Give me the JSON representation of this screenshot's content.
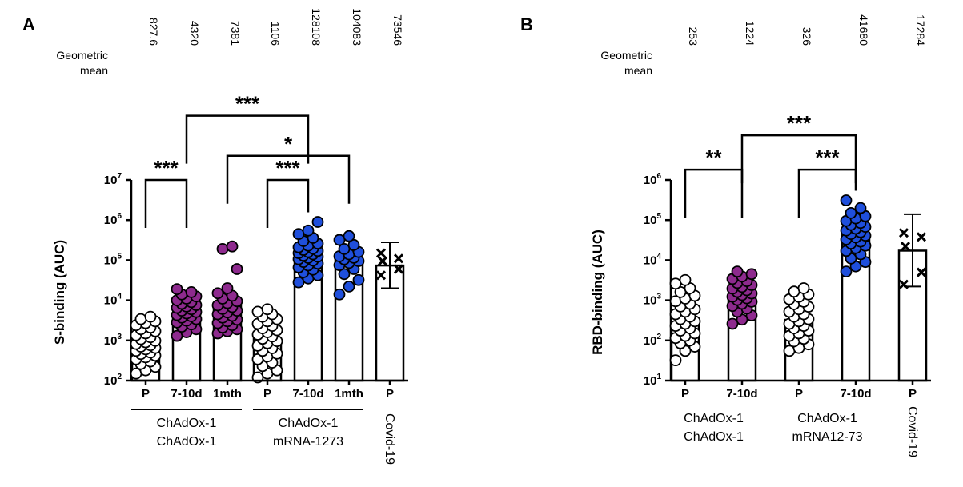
{
  "chart_data": [
    {
      "type": "bar",
      "panel": "A",
      "geo_mean_label": [
        "Geometric",
        "mean"
      ],
      "geo_means": [
        "827.6",
        "4320",
        "7381",
        "1106",
        "128108",
        "104083",
        "73546"
      ],
      "ylabel": "S-binding (AUC)",
      "y_scale": "log",
      "ylim": [
        100,
        10000000
      ],
      "y_ticks": [
        {
          "base": "10",
          "exp": "2"
        },
        {
          "base": "10",
          "exp": "3"
        },
        {
          "base": "10",
          "exp": "4"
        },
        {
          "base": "10",
          "exp": "5"
        },
        {
          "base": "10",
          "exp": "6"
        },
        {
          "base": "10",
          "exp": "7"
        }
      ],
      "categories": [
        "P",
        "7-10d",
        "1mth",
        "P",
        "7-10d",
        "1mth",
        "P"
      ],
      "values": [
        827.6,
        4320,
        7381,
        1106,
        128108,
        104083,
        73546
      ],
      "point_colors": [
        "#ffffff",
        "#8e2a8e",
        "#8e2a8e",
        "#ffffff",
        "#1f4fdc",
        "#1f4fdc",
        "cross"
      ],
      "points": [
        [
          150,
          180,
          220,
          260,
          300,
          340,
          380,
          420,
          460,
          500,
          550,
          600,
          650,
          700,
          760,
          820,
          900,
          980,
          1080,
          1200,
          1350,
          1500,
          1700,
          1900,
          2100,
          2400,
          2700,
          3000,
          3400,
          3900
        ],
        [
          1300,
          1600,
          1900,
          2200,
          2500,
          2800,
          3100,
          3400,
          3700,
          4000,
          4300,
          4700,
          5100,
          5500,
          6000,
          6500,
          7000,
          7600,
          8200,
          9000,
          10000,
          11000,
          12500,
          14000,
          16000,
          19000
        ],
        [
          1500,
          1700,
          1900,
          2100,
          2400,
          2700,
          3000,
          3300,
          3700,
          4100,
          4500,
          5000,
          5500,
          6100,
          6800,
          7500,
          8500,
          9500,
          11000,
          13000,
          15000,
          20000,
          60000,
          190000,
          220000
        ],
        [
          120,
          150,
          180,
          230,
          280,
          340,
          400,
          470,
          550,
          640,
          740,
          850,
          960,
          1100,
          1250,
          1400,
          1600,
          1800,
          2000,
          2300,
          2600,
          3000,
          3400,
          3900,
          4500,
          5200,
          6000
        ],
        [
          28000,
          35000,
          42000,
          50000,
          58000,
          66000,
          74000,
          82000,
          90000,
          98000,
          106000,
          114000,
          122000,
          130000,
          140000,
          150000,
          160000,
          170000,
          180000,
          195000,
          210000,
          230000,
          260000,
          300000,
          360000,
          450000,
          550000,
          900000
        ],
        [
          14000,
          22000,
          32000,
          45000,
          60000,
          75000,
          85000,
          95000,
          105000,
          115000,
          125000,
          140000,
          160000,
          190000,
          240000,
          320000,
          400000
        ],
        [
          42000,
          60000,
          95000,
          110000,
          150000
        ]
      ],
      "error_bar_index": 6,
      "error_bar": [
        20000,
        280000
      ],
      "significance": [
        {
          "from": 0,
          "to": 1,
          "label": "***",
          "level": 10000000
        },
        {
          "from": 1,
          "to": 4,
          "label": "***",
          "level": 400000000.0
        },
        {
          "from": 2,
          "to": 5,
          "label": "*",
          "level": 40000000.0
        },
        {
          "from": 3,
          "to": 4,
          "label": "***",
          "level": 10000000
        }
      ],
      "groups": [
        {
          "lines": [
            "ChAdOx-1",
            "ChAdOx-1"
          ],
          "span": [
            0,
            2
          ],
          "underline": true
        },
        {
          "lines": [
            "ChAdOx-1",
            "mRNA-1273"
          ],
          "span": [
            3,
            5
          ],
          "underline": true
        },
        {
          "lines": [
            "Covid-19"
          ],
          "span": [
            6,
            6
          ],
          "rotated": true
        }
      ]
    },
    {
      "type": "bar",
      "panel": "B",
      "geo_mean_label": [
        "Geometric",
        "mean"
      ],
      "geo_means": [
        "253",
        "1224",
        "326",
        "41680",
        "17284"
      ],
      "ylabel": "RBD-binding (AUC)",
      "y_scale": "log",
      "ylim": [
        10,
        1000000
      ],
      "y_ticks": [
        {
          "base": "10",
          "exp": "1"
        },
        {
          "base": "10",
          "exp": "2"
        },
        {
          "base": "10",
          "exp": "3"
        },
        {
          "base": "10",
          "exp": "4"
        },
        {
          "base": "10",
          "exp": "5"
        },
        {
          "base": "10",
          "exp": "6"
        }
      ],
      "categories": [
        "P",
        "7-10d",
        "P",
        "7-10d",
        "P"
      ],
      "values": [
        253,
        1224,
        326,
        41680,
        17284
      ],
      "point_colors": [
        "#ffffff",
        "#8e2a8e",
        "#ffffff",
        "#1f4fdc",
        "cross"
      ],
      "points": [
        [
          32,
          55,
          70,
          85,
          100,
          115,
          130,
          150,
          175,
          200,
          230,
          260,
          300,
          340,
          390,
          450,
          520,
          600,
          700,
          820,
          950,
          1100,
          1300,
          1600,
          2000,
          2600,
          3200
        ],
        [
          260,
          330,
          420,
          520,
          620,
          720,
          820,
          920,
          1020,
          1120,
          1230,
          1350,
          1480,
          1620,
          1780,
          1950,
          2150,
          2400,
          2700,
          3000,
          3400,
          3900,
          4500,
          5200
        ],
        [
          55,
          65,
          80,
          95,
          110,
          130,
          150,
          175,
          200,
          230,
          260,
          300,
          340,
          390,
          450,
          520,
          600,
          690,
          800,
          920,
          1060,
          1220,
          1400,
          1650,
          2000
        ],
        [
          5200,
          7000,
          9000,
          11000,
          14000,
          17000,
          20000,
          23000,
          26000,
          29000,
          33000,
          37000,
          41000,
          45000,
          50000,
          55000,
          61000,
          68000,
          76000,
          85000,
          95000,
          110000,
          125000,
          150000,
          200000,
          310000
        ],
        [
          2500,
          5000,
          22000,
          38000,
          48000
        ]
      ],
      "error_bar_index": 4,
      "error_bar": [
        2200,
        140000
      ],
      "significance": [
        {
          "from": 0,
          "to": 1,
          "label": "**",
          "level": 1800000
        },
        {
          "from": 1,
          "to": 3,
          "label": "***",
          "level": 13000000.0
        },
        {
          "from": 2,
          "to": 3,
          "label": "***",
          "level": 1800000
        }
      ],
      "groups": [
        {
          "lines": [
            "ChAdOx-1",
            "ChAdOx-1"
          ],
          "span": [
            0,
            1
          ],
          "underline": false
        },
        {
          "lines": [
            "ChAdOx-1",
            "mRNA12-73"
          ],
          "span": [
            2,
            3
          ],
          "underline": false
        },
        {
          "lines": [
            "Covid-19"
          ],
          "span": [
            4,
            4
          ],
          "rotated": true
        }
      ]
    }
  ]
}
